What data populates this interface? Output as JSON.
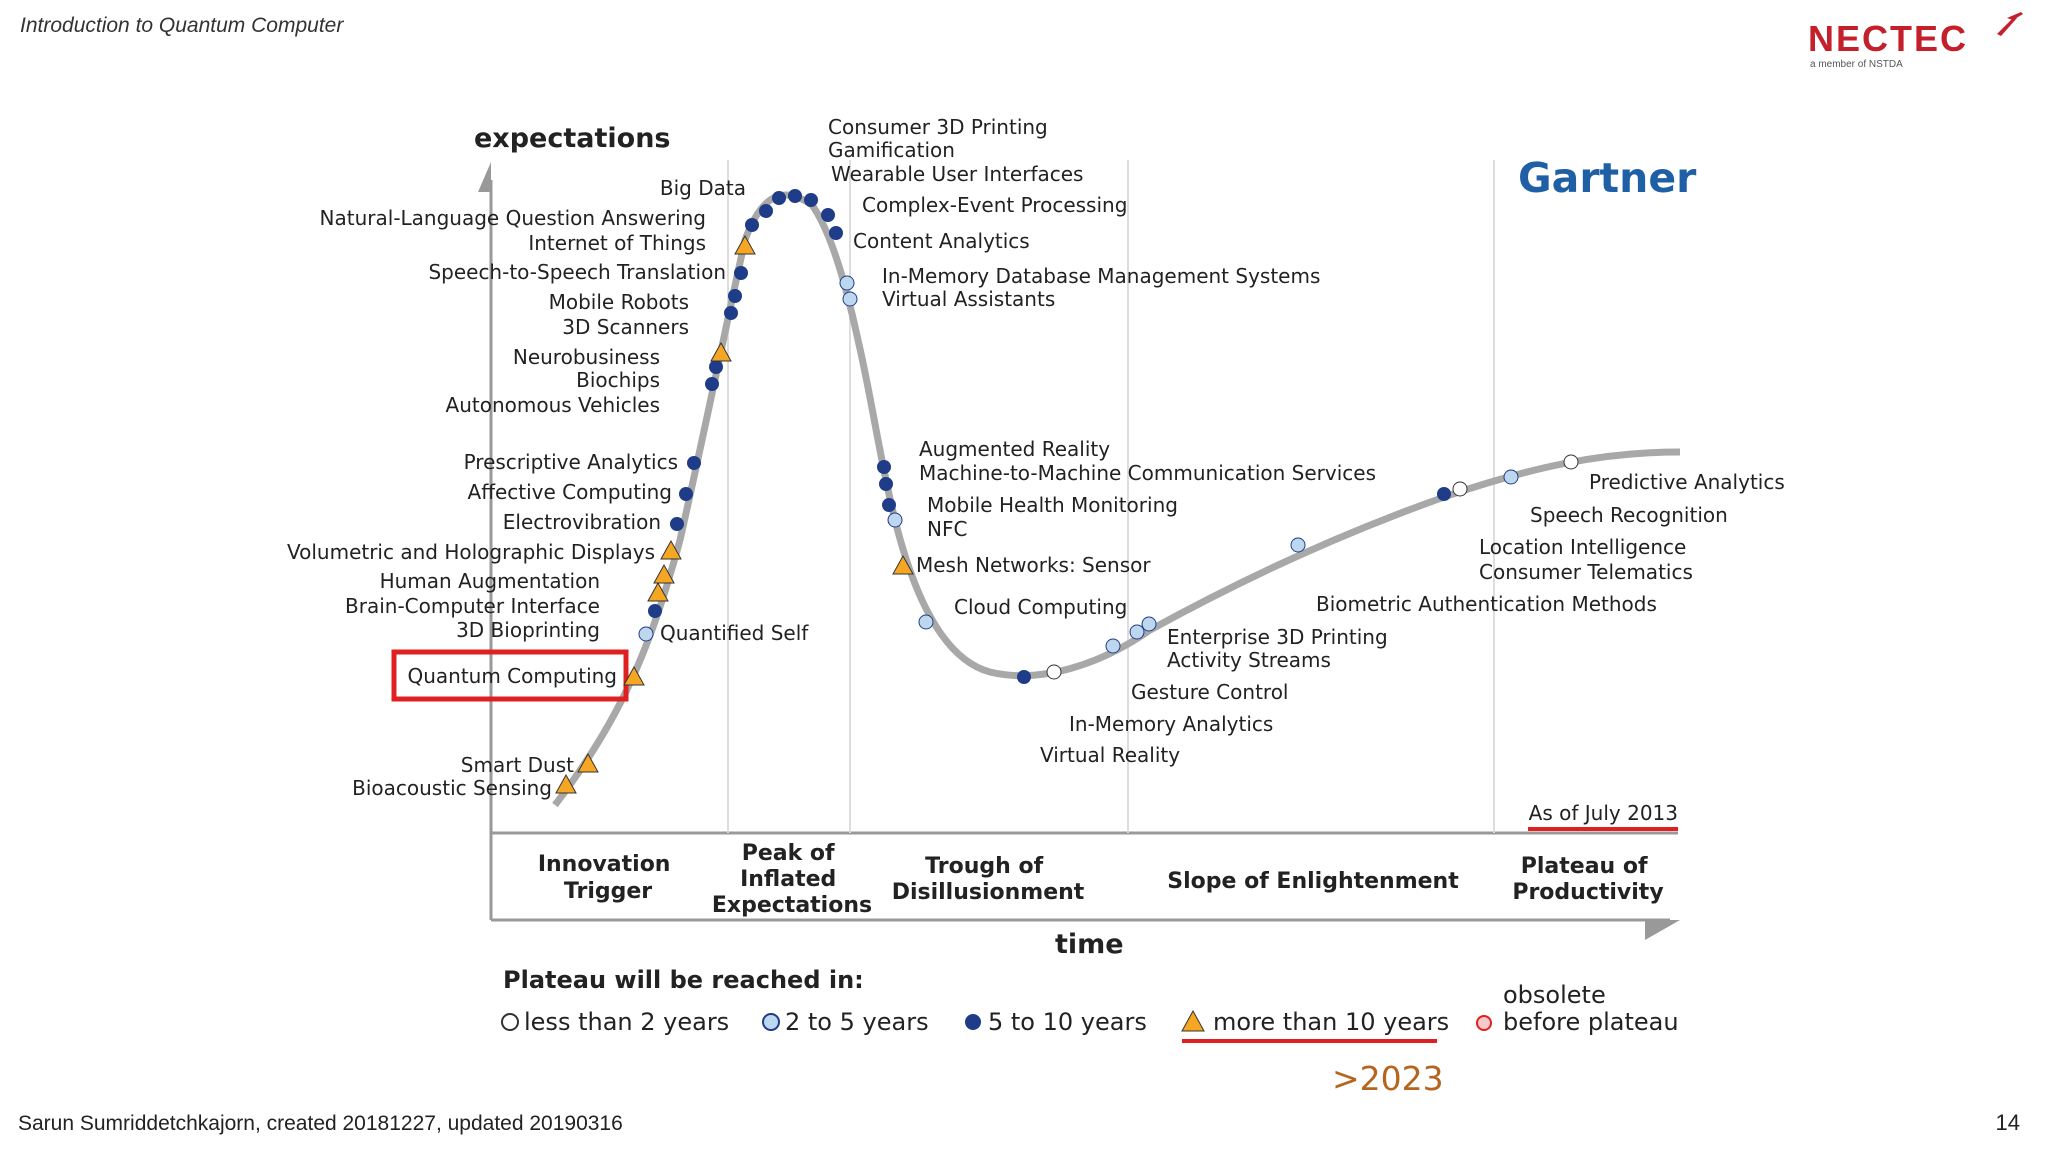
{
  "header": {
    "title": "Introduction to Quantum Computer"
  },
  "logo": {
    "name": "NECTEC",
    "sub": "a member of NSTDA"
  },
  "footer": {
    "credit": "Sarun Sumriddetchkajorn, created 20181227, updated 20190316",
    "page_number": "14"
  },
  "hype": {
    "brand": "Gartner",
    "y_label": "expectations",
    "x_label": "time",
    "as_of": "As of July 2013",
    "phases": [
      [
        "Innovation",
        "Trigger"
      ],
      [
        "Peak of",
        "Inflated",
        "Expectations"
      ],
      [
        "Trough of",
        "Disillusionment"
      ],
      [
        "Slope of Enlightenment"
      ],
      [
        "Plateau of",
        "Productivity"
      ]
    ],
    "legend": {
      "title": "Plateau will be reached in:",
      "items": [
        "less than 2 years",
        "2 to 5 years",
        "5 to 10 years",
        "more than 10 years"
      ],
      "obsolete": [
        "obsolete",
        "before plateau"
      ]
    },
    "note": ">2023",
    "highlight": "Quantum Computing",
    "colors": {
      "lt2": "#ffffff",
      "2to5": "#bdd7ee",
      "5to10": "#1f3c88",
      "gt10": "#f5a623",
      "curve": "#a8a8a8",
      "red": "#e02020",
      "brand": "#1f5fa6",
      "note": "#b5651d"
    },
    "technologies": [
      "Quantum Computing",
      "Smart Dust",
      "Bioacoustic Sensing",
      "3D Bioprinting",
      "Quantified Self",
      "Brain-Computer Interface",
      "Human Augmentation",
      "Volumetric and Holographic Displays",
      "Electrovibration",
      "Affective Computing",
      "Prescriptive Analytics",
      "Autonomous Vehicles",
      "Biochips",
      "Neurobusiness",
      "3D Scanners",
      "Mobile Robots",
      "Speech-to-Speech Translation",
      "Internet of Things",
      "Natural-Language Question Answering",
      "Big Data",
      "Consumer 3D Printing",
      "Gamification",
      "Wearable User Interfaces",
      "Complex-Event Processing",
      "Content Analytics",
      "In-Memory Database Management Systems",
      "Virtual Assistants",
      "Augmented Reality",
      "Machine-to-Machine Communication Services",
      "Mobile Health Monitoring",
      "NFC",
      "Mesh Networks: Sensor",
      "Cloud Computing",
      "Virtual Reality",
      "In-Memory Analytics",
      "Gesture Control",
      "Activity Streams",
      "Enterprise 3D Printing",
      "Biometric Authentication Methods",
      "Consumer Telematics",
      "Location Intelligence",
      "Speech Recognition",
      "Predictive Analytics"
    ]
  }
}
